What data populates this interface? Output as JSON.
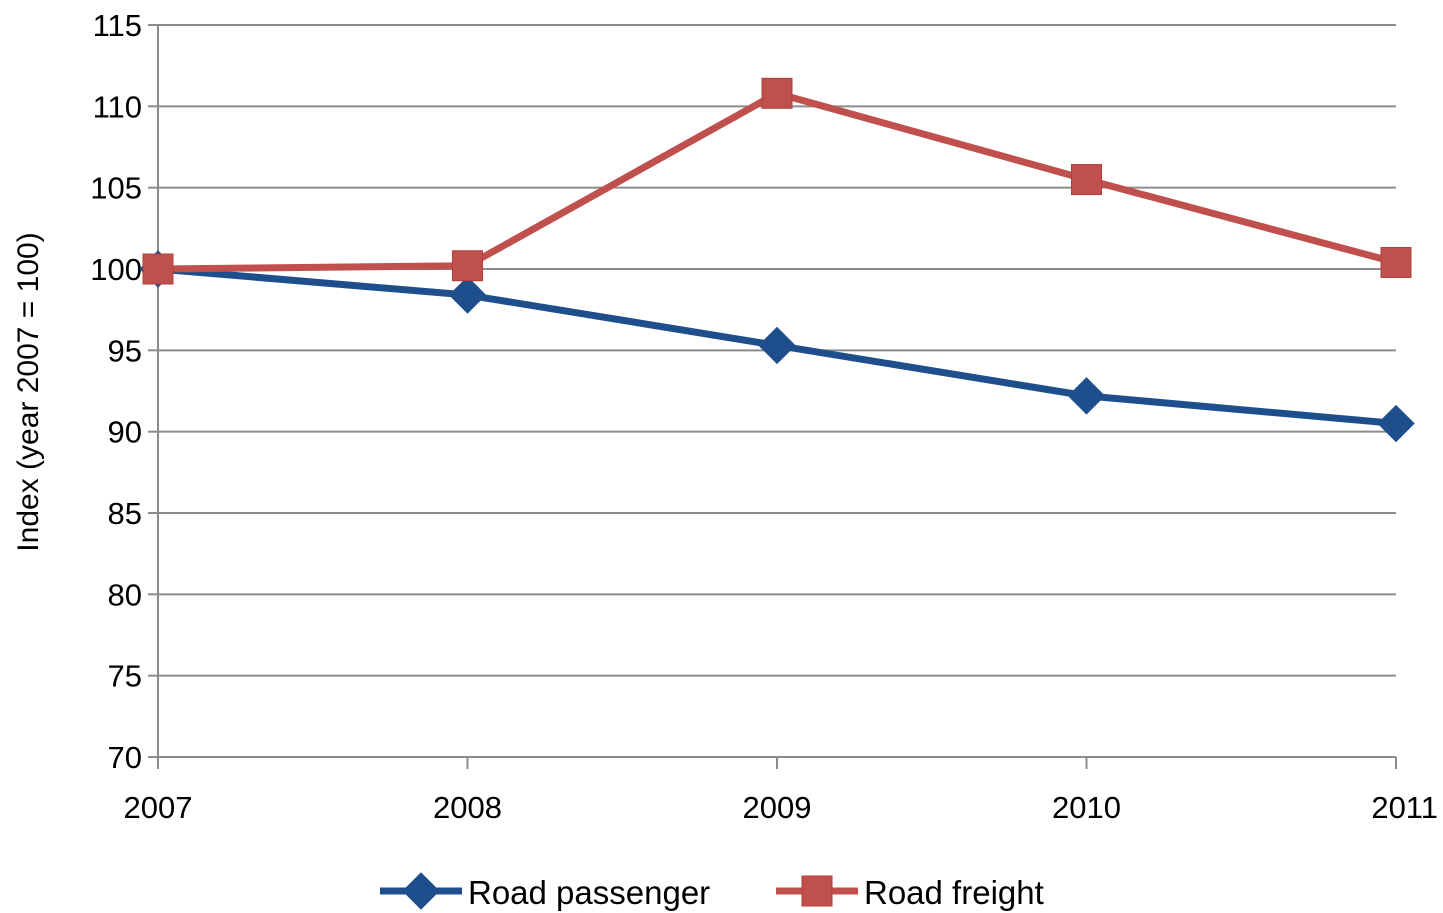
{
  "chart_data": {
    "type": "line",
    "title": "",
    "xlabel": "",
    "ylabel": "Index (year 2007 = 100)",
    "categories": [
      "2007",
      "2008",
      "2009",
      "2010",
      "2011"
    ],
    "ylim": [
      70,
      115
    ],
    "yticks": [
      70,
      75,
      80,
      85,
      90,
      95,
      100,
      105,
      110,
      115
    ],
    "grid": true,
    "legend_position": "bottom",
    "series": [
      {
        "name": "Road passenger",
        "color": "#1f4e8c",
        "marker": "diamond",
        "values": [
          100,
          98.4,
          95.3,
          92.2,
          90.5
        ]
      },
      {
        "name": "Road freight",
        "color": "#c0504d",
        "marker": "square",
        "values": [
          100,
          100.2,
          110.8,
          105.5,
          100.4
        ]
      }
    ]
  }
}
